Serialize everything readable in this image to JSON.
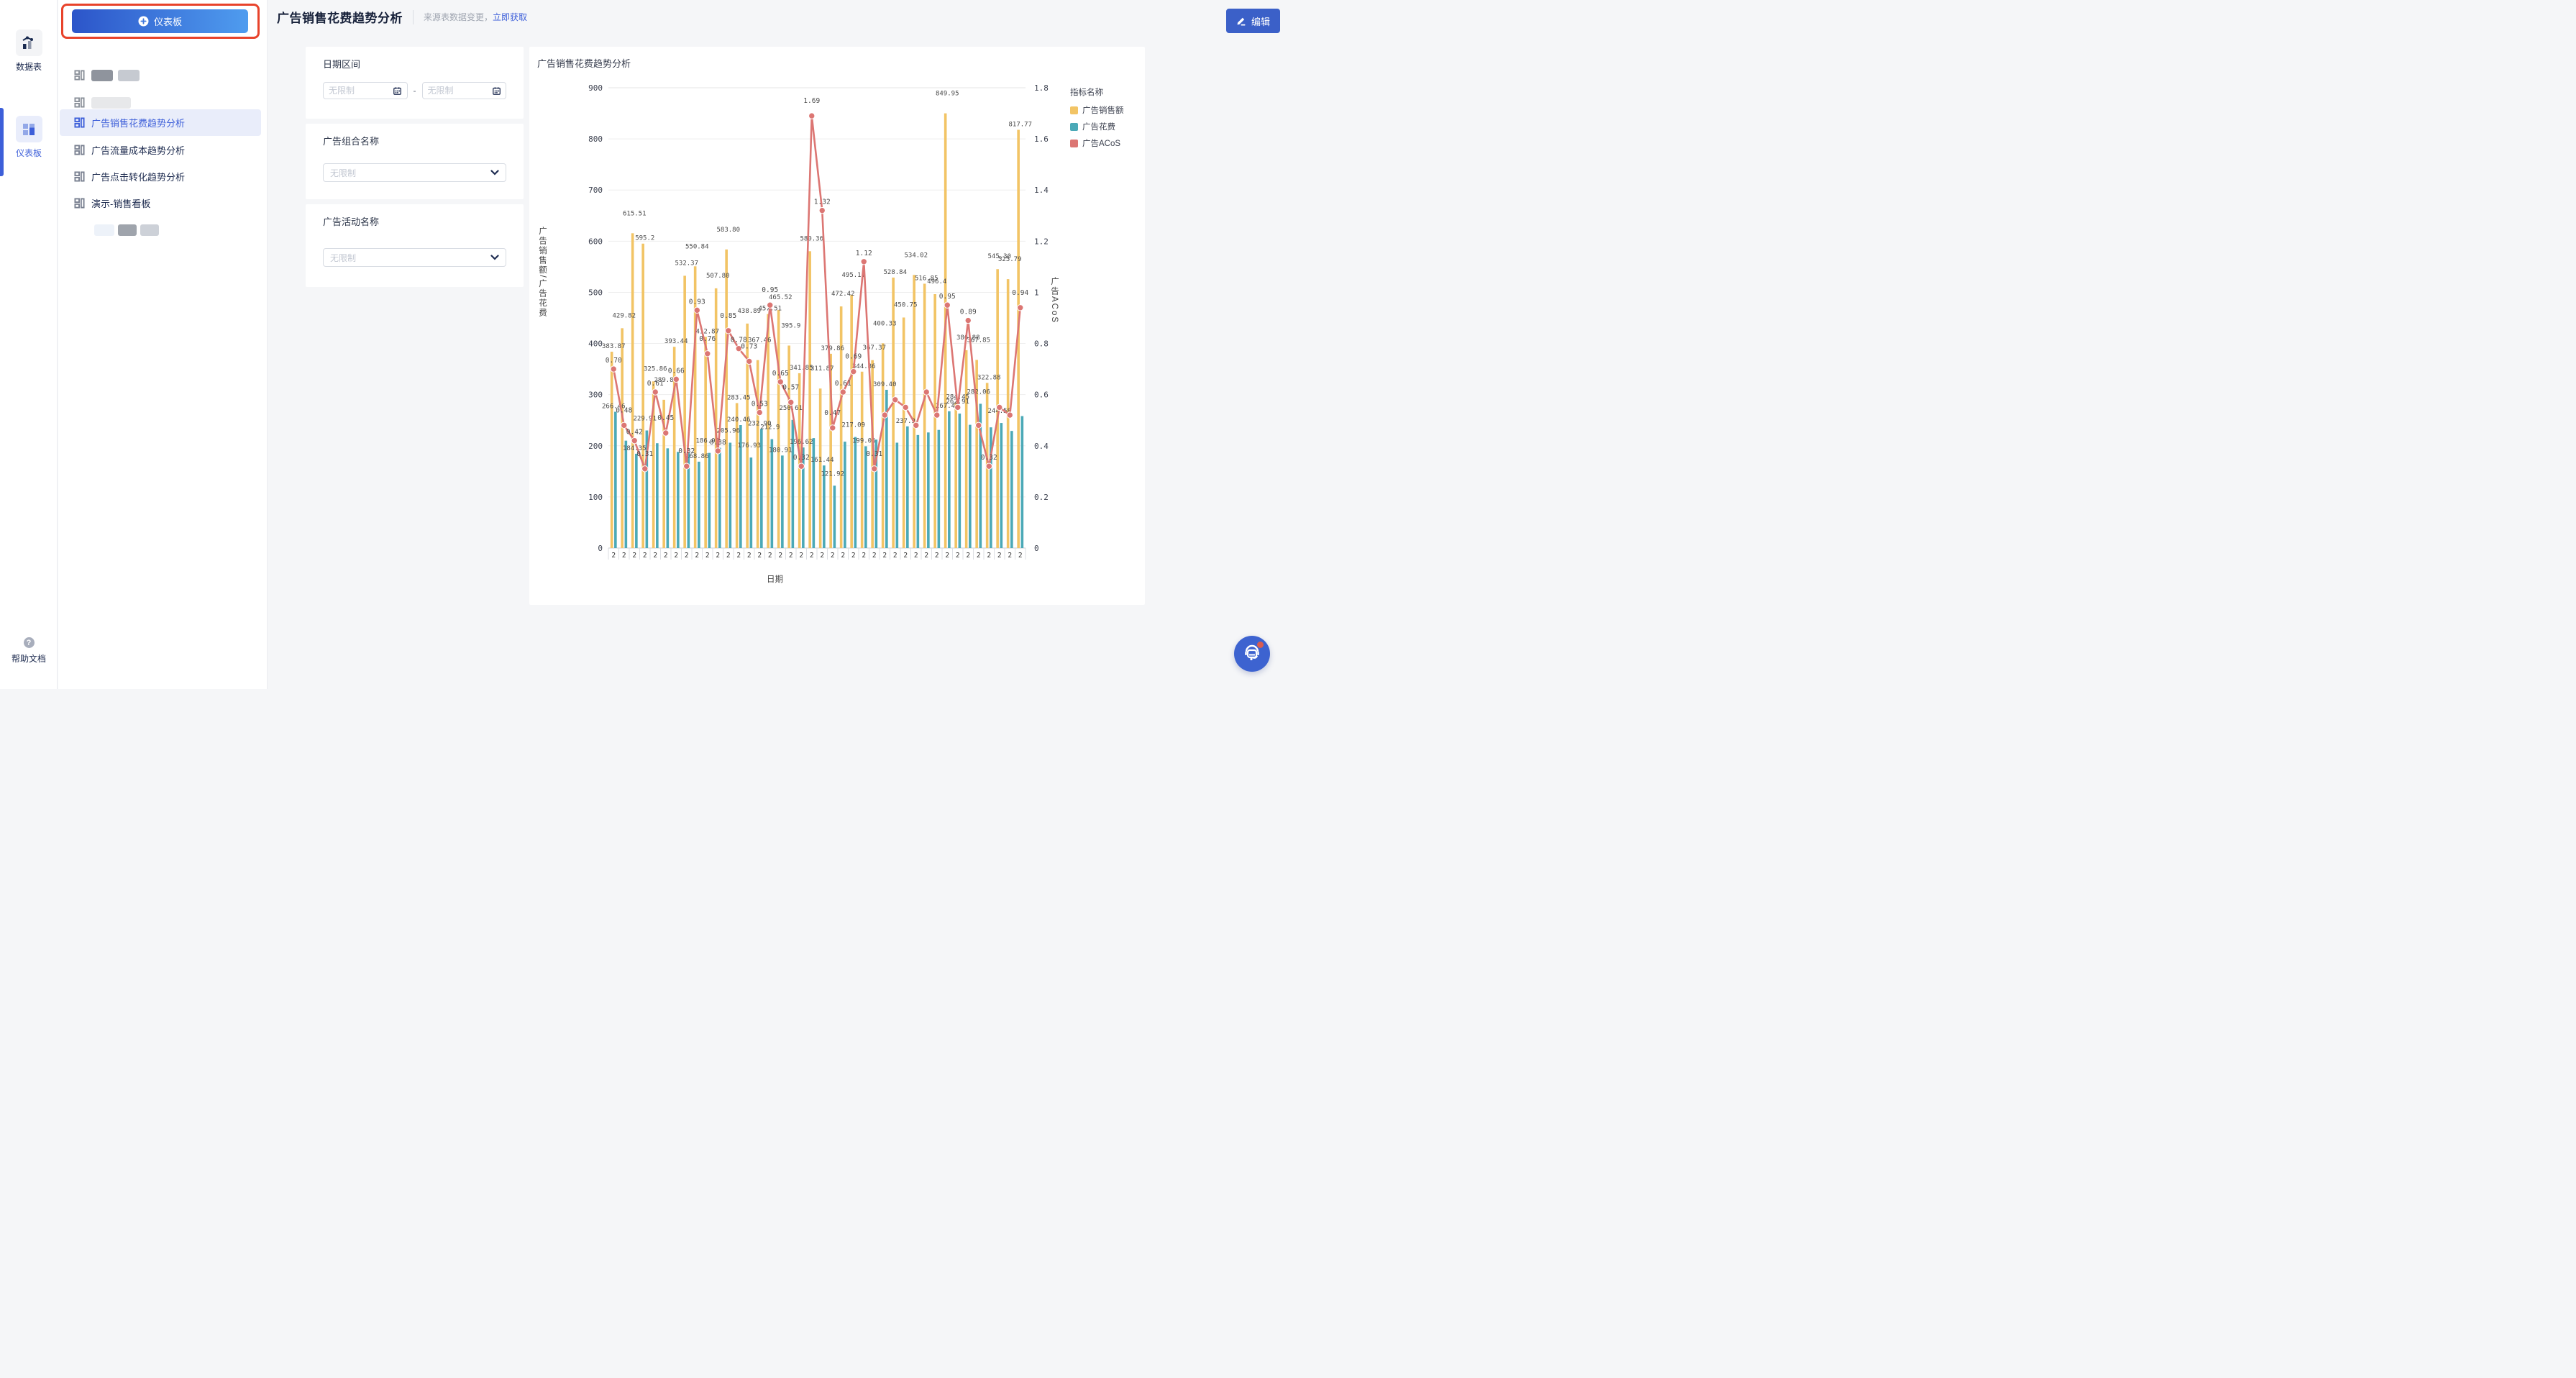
{
  "rail": {
    "data_tables": {
      "label": "数据表"
    },
    "dashboards": {
      "label": "仪表板"
    },
    "help": {
      "label": "帮助文档"
    }
  },
  "sidebar": {
    "new_dashboard_button": "仪表板",
    "items": [
      {
        "label": "广告销售花费趋势分析",
        "selected": true
      },
      {
        "label": "广告流量成本趋势分析",
        "selected": false
      },
      {
        "label": "广告点击转化趋势分析",
        "selected": false
      },
      {
        "label": "演示-销售看板",
        "selected": false
      }
    ]
  },
  "header": {
    "title": "广告销售花费趋势分析",
    "notice": "来源表数据变更，",
    "notice_link": "立即获取",
    "edit_button": "编辑"
  },
  "filters": {
    "date_range": {
      "label": "日期区间",
      "start_placeholder": "无限制",
      "end_placeholder": "无限制",
      "separator": "-"
    },
    "portfolio": {
      "label": "广告组合名称",
      "placeholder": "无限制"
    },
    "campaign": {
      "label": "广告活动名称",
      "placeholder": "无限制"
    }
  },
  "colors": {
    "accent_blue": "#3D5FD9",
    "annotation_red": "#E8432B",
    "bar_sales": "#F2C465",
    "bar_spend": "#4BA9B7",
    "line_acos": "#DC7673"
  },
  "chart_data": {
    "type": "bar",
    "title": "广告销售花费趋势分析",
    "xlabel": "日期",
    "ylabel_left": "广告销售额/广告花费",
    "ylabel_right": "广告ACoS",
    "legend_title": "指标名称",
    "legend_position": "right",
    "grid": true,
    "x_tick_label": "2",
    "ylim_left": [
      0,
      900
    ],
    "yticks_left": [
      0,
      100,
      200,
      300,
      400,
      500,
      600,
      700,
      800,
      900
    ],
    "ylim_right": [
      0,
      1.8
    ],
    "yticks_right": [
      "0",
      "0.2",
      "0.4",
      "0.6",
      "0.8",
      "1",
      "1.2",
      "1.4",
      "1.6",
      "1.8"
    ],
    "series": [
      {
        "name": "广告销售额",
        "type": "bar",
        "axis": "left",
        "color": "#F2C465",
        "values": [
          383.87,
          429.82,
          615.51,
          595.2,
          325.86,
          289.88,
          393.44,
          532.37,
          550.84,
          412.87,
          507.8,
          583.8,
          283.45,
          438.89,
          367.46,
          457.51,
          465.52,
          395.9,
          341.85,
          580.36,
          311.87,
          379.86,
          472.42,
          495.11,
          344.86,
          367.37,
          400.33,
          528.84,
          450.75,
          534.02,
          516.85,
          496.4,
          849.95,
          284.45,
          386.88,
          367.85,
          322.88,
          545.3,
          525.79,
          817.77
        ],
        "labels": [
          "383.87",
          "429.82",
          "615.51",
          "595.2",
          "325.86",
          "289.88",
          "393.44",
          "532.37",
          "550.84",
          "412.87",
          "507.80",
          "583.80",
          "283.45",
          "438.89",
          "367.46",
          "457.51",
          "465.52",
          "395.9",
          "341.85",
          "580.36",
          "311.87",
          "379.86",
          "472.42",
          "495.11",
          "344.86",
          "367.37",
          "400.33",
          "528.84",
          "450.75",
          "534.02",
          "516.85",
          "496.4",
          "849.95",
          "284.45",
          "386.88",
          "367.85",
          "322.88",
          "545.30",
          "525.79",
          "817.77"
        ]
      },
      {
        "name": "广告花费",
        "type": "bar",
        "axis": "left",
        "color": "#4BA9B7",
        "values": [
          266.46,
          210,
          184.35,
          229.91,
          205,
          195,
          188,
          186,
          168.86,
          186.05,
          196,
          205.96,
          240.46,
          176.93,
          232.9,
          212.9,
          180.91,
          250.61,
          196.62,
          215,
          161.44,
          121.92,
          208,
          217.09,
          199.06,
          212,
          309.4,
          206,
          237.9,
          221,
          226,
          231,
          267.42,
          262.91,
          241,
          282.06,
          236,
          244.58,
          229,
          258
        ],
        "labels": [
          "266.46",
          null,
          "184.35",
          "229.91",
          null,
          null,
          null,
          null,
          "168.86",
          "186.05",
          null,
          "205.96",
          "240.46",
          "176.93",
          "232.90",
          "212.9",
          "180.91",
          "250.61",
          "196.62",
          null,
          "161.44",
          "121.92",
          null,
          "217.09",
          "199.06",
          null,
          "309.40",
          null,
          "237.9",
          null,
          null,
          null,
          "267.42",
          "262.91",
          null,
          "282.06",
          null,
          "244.58",
          null,
          null
        ]
      },
      {
        "name": "广告ACoS",
        "type": "line",
        "axis": "right",
        "color": "#DC7673",
        "values": [
          0.7,
          0.48,
          0.42,
          0.31,
          0.61,
          0.45,
          0.66,
          0.32,
          0.93,
          0.76,
          0.38,
          0.85,
          0.78,
          0.73,
          0.53,
          0.95,
          0.65,
          0.57,
          0.32,
          1.69,
          1.32,
          0.47,
          0.61,
          0.69,
          1.12,
          0.31,
          0.52,
          0.58,
          0.55,
          0.48,
          0.61,
          0.52,
          0.95,
          0.55,
          0.89,
          0.48,
          0.32,
          0.55,
          0.52,
          0.94
        ],
        "labels": [
          "0.70",
          "0.48",
          "0.42",
          "0.31",
          "0.61",
          "0.45",
          "0.66",
          "0.32",
          "0.93",
          "0.76",
          "0.38",
          "0.85",
          "0.78",
          "0.73",
          "0.53",
          "0.95",
          "0.65",
          "0.57",
          "0.32",
          "1.69",
          "1.32",
          "0.47",
          "0.61",
          "0.69",
          "1.12",
          "0.31",
          null,
          null,
          null,
          null,
          null,
          null,
          "0.95",
          null,
          "0.89",
          null,
          "0.32",
          null,
          null,
          "0.94"
        ]
      }
    ]
  }
}
